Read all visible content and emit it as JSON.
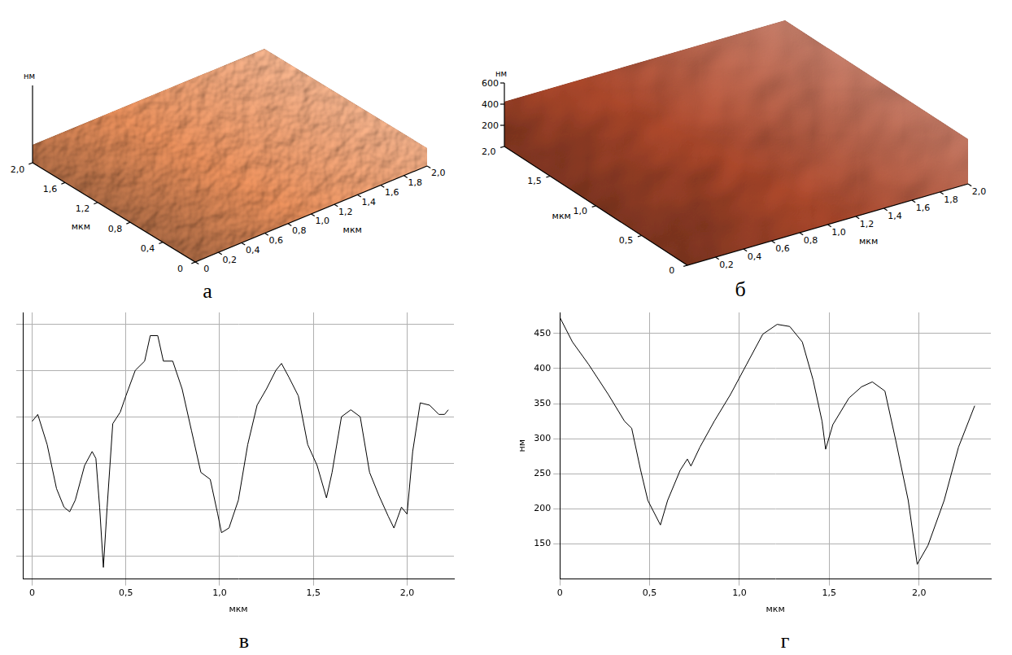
{
  "chart_data": [
    {
      "panel": "а",
      "type": "surface3d",
      "color": "#e08a58",
      "xlabel": "мкм",
      "ylabel": "мкм",
      "zlabel": "нм",
      "xlim": [
        0,
        2
      ],
      "ylim": [
        0,
        2
      ],
      "xticks": [
        0,
        {
          "value": 0.2,
          "label": "0,2"
        },
        {
          "value": 0.4,
          "label": "0,4"
        },
        {
          "value": 0.6,
          "label": "0,6"
        },
        {
          "value": 0.8,
          "label": "0,8"
        },
        {
          "value": 1,
          "label": "1,0"
        },
        {
          "value": 1.2,
          "label": "1,2"
        },
        {
          "value": 1.4,
          "label": "1,4"
        },
        {
          "value": 1.6,
          "label": "1,6"
        },
        {
          "value": 1.8,
          "label": "1,8"
        },
        {
          "value": 2,
          "label": "2,0"
        }
      ],
      "yticks": [
        0,
        {
          "value": 0.4,
          "label": "0,4"
        },
        {
          "value": 0.8,
          "label": "0,8"
        },
        {
          "value": 1.2,
          "label": "1,2"
        },
        {
          "value": 1.6,
          "label": "1,6"
        },
        {
          "value": 2,
          "label": "2,0"
        }
      ]
    },
    {
      "panel": "б",
      "type": "surface3d",
      "color": "#a8462a",
      "xlabel": "мкм",
      "ylabel": "мкм",
      "zlabel": "нм",
      "xlim": [
        0,
        2
      ],
      "ylim": [
        0,
        2
      ],
      "zlim": [
        0,
        600
      ],
      "xticks": [
        {
          "value": 0.2,
          "label": "0,2"
        },
        {
          "value": 0.4,
          "label": "0,4"
        },
        {
          "value": 0.6,
          "label": "0,6"
        },
        {
          "value": 0.8,
          "label": "0,8"
        },
        {
          "value": 1,
          "label": "1,0"
        },
        {
          "value": 1.2,
          "label": "1,2"
        },
        {
          "value": 1.4,
          "label": "1,4"
        },
        {
          "value": 1.6,
          "label": "1,6"
        },
        {
          "value": 1.8,
          "label": "1,8"
        },
        {
          "value": 2,
          "label": "2,0"
        }
      ],
      "yticks": [
        0,
        {
          "value": 0.5,
          "label": "0,5"
        },
        {
          "value": 1,
          "label": "1,0"
        },
        {
          "value": 1.5,
          "label": "1,5"
        },
        {
          "value": 2,
          "label": "2,0"
        }
      ],
      "zticks": [
        200,
        400,
        600
      ]
    },
    {
      "panel": "в",
      "type": "line",
      "color": "#000000",
      "xlabel": "мкм",
      "grid": true,
      "tick_labels": "x",
      "xlim": [
        -0.05,
        2.25
      ],
      "ylim": [
        -10,
        105
      ],
      "xticks": [
        0,
        {
          "value": 0.5,
          "label": "0,5"
        },
        {
          "value": 1,
          "label": "1,0"
        },
        {
          "value": 1.5,
          "label": "1,5"
        },
        {
          "value": 2,
          "label": "2,0"
        }
      ],
      "yticks": [
        0,
        20,
        40,
        60,
        80,
        100
      ],
      "x": [
        0,
        0.03,
        0.08,
        0.13,
        0.17,
        0.2,
        0.23,
        0.28,
        0.32,
        0.34,
        0.36,
        0.38,
        0.4,
        0.43,
        0.47,
        0.5,
        0.55,
        0.6,
        0.63,
        0.67,
        0.7,
        0.75,
        0.8,
        0.85,
        0.9,
        0.95,
        0.99,
        1.01,
        1.05,
        1.1,
        1.15,
        1.2,
        1.25,
        1.3,
        1.33,
        1.37,
        1.42,
        1.47,
        1.52,
        1.57,
        1.6,
        1.65,
        1.7,
        1.75,
        1.8,
        1.85,
        1.9,
        1.93,
        1.97,
        2.0,
        2.03,
        2.07,
        2.12,
        2.17,
        2.2,
        2.22
      ],
      "values": [
        58,
        61,
        48,
        29,
        21,
        19,
        24,
        39,
        45,
        42,
        21,
        -5,
        21,
        57,
        62,
        69,
        80,
        84,
        95,
        95,
        84,
        84,
        72,
        54,
        36,
        33,
        18,
        10,
        12,
        24,
        48,
        65,
        72,
        80,
        83,
        77,
        69,
        48,
        39,
        25,
        36,
        60,
        63,
        60,
        36,
        26,
        17,
        12,
        21,
        18,
        45,
        66,
        65,
        61,
        61,
        63
      ]
    },
    {
      "panel": "г",
      "type": "line",
      "color": "#000000",
      "xlabel": "мкм",
      "ylabel": "нм",
      "grid": true,
      "xlim": [
        0,
        2.4
      ],
      "ylim": [
        100,
        480
      ],
      "xticks": [
        0,
        {
          "value": 0.5,
          "label": "0,5"
        },
        {
          "value": 1,
          "label": "1,0"
        },
        {
          "value": 1.5,
          "label": "1,5"
        },
        {
          "value": 2,
          "label": "2,0"
        }
      ],
      "yticks": [
        150,
        200,
        250,
        300,
        350,
        400,
        450
      ],
      "x": [
        0,
        0.07,
        0.16,
        0.27,
        0.36,
        0.4,
        0.45,
        0.49,
        0.56,
        0.6,
        0.67,
        0.71,
        0.73,
        0.78,
        0.86,
        0.95,
        1.04,
        1.13,
        1.21,
        1.28,
        1.35,
        1.41,
        1.46,
        1.48,
        1.52,
        1.61,
        1.68,
        1.74,
        1.81,
        1.87,
        1.94,
        1.99,
        2.05,
        2.14,
        2.22,
        2.31
      ],
      "values": [
        473,
        438,
        406,
        363,
        325,
        315,
        255,
        212,
        177,
        212,
        255,
        271,
        261,
        288,
        325,
        363,
        406,
        449,
        463,
        460,
        438,
        384,
        325,
        285,
        320,
        358,
        374,
        381,
        368,
        298,
        212,
        121,
        148,
        212,
        288,
        347
      ]
    }
  ]
}
